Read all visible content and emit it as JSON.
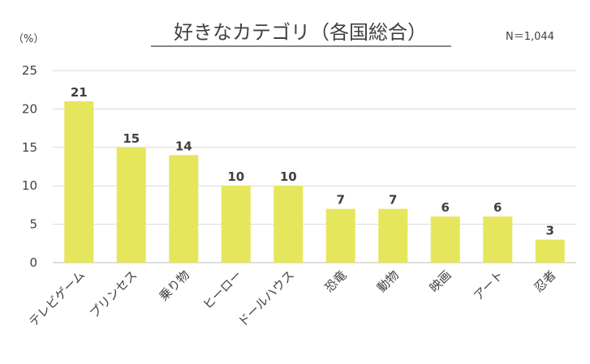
{
  "chart_data": {
    "type": "bar",
    "title": "好きなカテゴリ（各国総合）",
    "note": "N＝1,044",
    "ylabel": "（%）",
    "xlabel": "",
    "ylim": [
      0,
      25
    ],
    "yticks": [
      0,
      5,
      10,
      15,
      20,
      25
    ],
    "grid": true,
    "categories": [
      "テレビゲーム",
      "プリンセス",
      "乗り物",
      "ヒーロー",
      "ドールハウス",
      "恐竜",
      "動物",
      "映画",
      "アート",
      "忍者"
    ],
    "values": [
      21,
      15,
      14,
      10,
      10,
      7,
      7,
      6,
      6,
      3
    ],
    "data_labels": [
      "21",
      "15",
      "14",
      "10",
      "10",
      "7",
      "7",
      "6",
      "6",
      "3"
    ],
    "bar_color": "#e6e65c",
    "grid_color": "#d9d9d9"
  }
}
